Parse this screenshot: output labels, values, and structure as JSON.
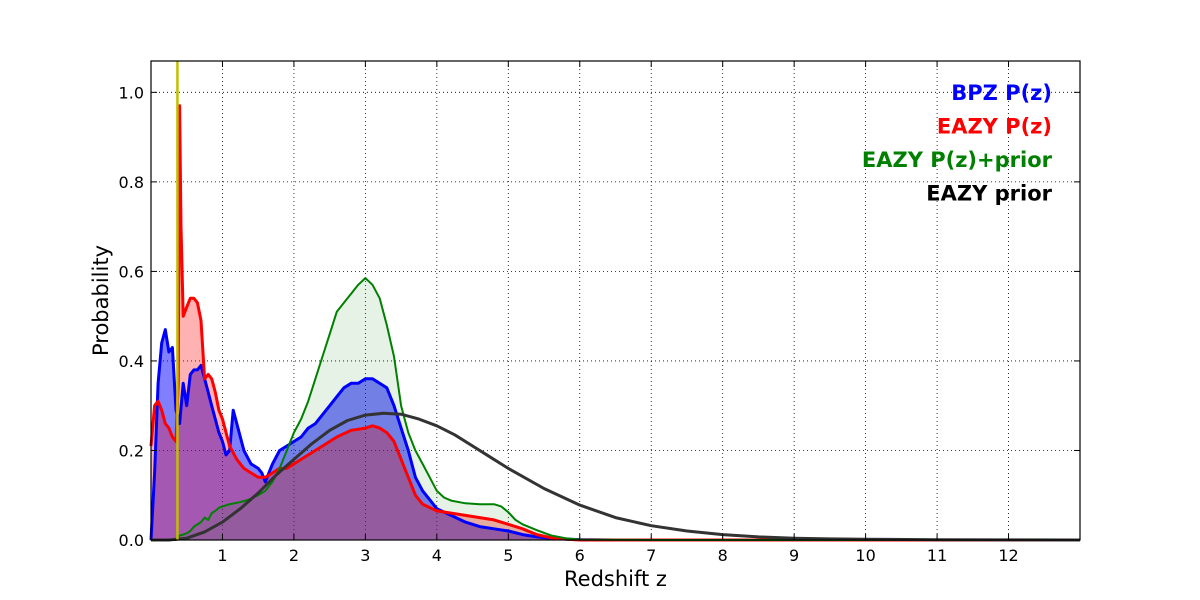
{
  "chart_data": {
    "type": "area",
    "xlabel": "Redshift z",
    "ylabel": "Probability",
    "xlim": [
      0,
      13
    ],
    "ylim": [
      0,
      1.07
    ],
    "xticks": [
      1,
      2,
      3,
      4,
      5,
      6,
      7,
      8,
      9,
      10,
      11,
      12
    ],
    "yticks": [
      0.0,
      0.2,
      0.4,
      0.6,
      0.8,
      1.0
    ],
    "ytick_labels": [
      "0.0",
      "0.2",
      "0.4",
      "0.6",
      "0.8",
      "1.0"
    ],
    "grid": true,
    "legend_position": "top-right",
    "reference_line": {
      "x": 0.37,
      "color": "#bfbf00"
    },
    "series": [
      {
        "name": "BPZ P(z)",
        "color": "#0000ff",
        "fill": "#0000ff",
        "fill_opacity": 0.5,
        "line_width": 3,
        "x": [
          0,
          0.05,
          0.1,
          0.15,
          0.2,
          0.25,
          0.3,
          0.35,
          0.4,
          0.45,
          0.5,
          0.55,
          0.6,
          0.65,
          0.7,
          0.75,
          0.8,
          0.85,
          0.9,
          0.95,
          1.0,
          1.05,
          1.1,
          1.15,
          1.2,
          1.3,
          1.4,
          1.5,
          1.55,
          1.6,
          1.7,
          1.8,
          1.9,
          2.0,
          2.1,
          2.2,
          2.3,
          2.4,
          2.5,
          2.6,
          2.7,
          2.8,
          2.9,
          3.0,
          3.1,
          3.2,
          3.3,
          3.4,
          3.5,
          3.6,
          3.7,
          3.8,
          3.9,
          4.0,
          4.2,
          4.4,
          4.6,
          4.8,
          5.0,
          5.2,
          5.4,
          5.6,
          5.8,
          6.0,
          6.5,
          7,
          8,
          9,
          10,
          11,
          12,
          13
        ],
        "y": [
          0.0,
          0.15,
          0.35,
          0.44,
          0.47,
          0.42,
          0.43,
          0.29,
          0.26,
          0.35,
          0.3,
          0.37,
          0.38,
          0.38,
          0.39,
          0.36,
          0.33,
          0.3,
          0.27,
          0.24,
          0.22,
          0.19,
          0.2,
          0.29,
          0.26,
          0.2,
          0.17,
          0.16,
          0.15,
          0.13,
          0.17,
          0.2,
          0.21,
          0.22,
          0.23,
          0.25,
          0.26,
          0.28,
          0.3,
          0.32,
          0.34,
          0.35,
          0.35,
          0.36,
          0.36,
          0.35,
          0.34,
          0.3,
          0.25,
          0.2,
          0.14,
          0.11,
          0.09,
          0.07,
          0.055,
          0.04,
          0.03,
          0.025,
          0.02,
          0.012,
          0.007,
          0.004,
          0.002,
          0.001,
          0.0,
          0.0,
          0.0,
          0.0,
          0.0,
          0.0,
          0.0,
          0.0
        ]
      },
      {
        "name": "EAZY P(z)",
        "color": "#ff0000",
        "fill": "#ff0000",
        "fill_opacity": 0.3,
        "line_width": 3,
        "x": [
          0,
          0.05,
          0.1,
          0.15,
          0.2,
          0.25,
          0.3,
          0.35,
          0.38,
          0.4,
          0.42,
          0.45,
          0.5,
          0.55,
          0.6,
          0.65,
          0.7,
          0.75,
          0.8,
          0.85,
          0.9,
          0.95,
          1.0,
          1.1,
          1.2,
          1.3,
          1.4,
          1.5,
          1.6,
          1.7,
          1.8,
          1.9,
          2.0,
          2.2,
          2.4,
          2.6,
          2.8,
          3.0,
          3.1,
          3.2,
          3.3,
          3.4,
          3.5,
          3.6,
          3.7,
          3.8,
          4.0,
          4.2,
          4.4,
          4.6,
          4.8,
          5.0,
          5.2,
          5.4,
          5.6,
          5.8,
          6.0,
          7,
          8,
          10,
          13
        ],
        "y": [
          0.21,
          0.3,
          0.31,
          0.29,
          0.26,
          0.25,
          0.23,
          0.22,
          0.35,
          0.97,
          0.7,
          0.5,
          0.52,
          0.54,
          0.54,
          0.53,
          0.49,
          0.36,
          0.37,
          0.36,
          0.33,
          0.29,
          0.27,
          0.21,
          0.18,
          0.16,
          0.15,
          0.14,
          0.14,
          0.15,
          0.16,
          0.16,
          0.17,
          0.19,
          0.21,
          0.23,
          0.245,
          0.25,
          0.255,
          0.25,
          0.24,
          0.22,
          0.18,
          0.14,
          0.1,
          0.08,
          0.065,
          0.06,
          0.055,
          0.05,
          0.045,
          0.035,
          0.025,
          0.012,
          0.005,
          0.002,
          0.0,
          0.0,
          0.0,
          0.0,
          0.0
        ]
      },
      {
        "name": "EAZY P(z)+prior",
        "color": "#008000",
        "fill": "#008000",
        "fill_opacity": 0.1,
        "line_width": 2,
        "x": [
          0,
          0.2,
          0.35,
          0.4,
          0.45,
          0.5,
          0.55,
          0.6,
          0.7,
          0.75,
          0.8,
          0.85,
          0.9,
          0.95,
          1.0,
          1.1,
          1.2,
          1.3,
          1.4,
          1.5,
          1.6,
          1.7,
          1.8,
          1.9,
          2.0,
          2.1,
          2.2,
          2.3,
          2.4,
          2.5,
          2.6,
          2.7,
          2.8,
          2.9,
          3.0,
          3.1,
          3.2,
          3.3,
          3.4,
          3.5,
          3.6,
          3.7,
          3.8,
          3.9,
          4.0,
          4.1,
          4.2,
          4.4,
          4.6,
          4.8,
          4.9,
          5.0,
          5.1,
          5.2,
          5.4,
          5.6,
          5.8,
          6.0,
          7,
          13
        ],
        "y": [
          0.0,
          0.0,
          0.0,
          0.01,
          0.012,
          0.015,
          0.02,
          0.03,
          0.04,
          0.05,
          0.045,
          0.06,
          0.065,
          0.072,
          0.075,
          0.08,
          0.083,
          0.087,
          0.092,
          0.1,
          0.11,
          0.13,
          0.16,
          0.2,
          0.24,
          0.27,
          0.31,
          0.36,
          0.41,
          0.46,
          0.51,
          0.53,
          0.55,
          0.57,
          0.585,
          0.57,
          0.54,
          0.48,
          0.41,
          0.3,
          0.24,
          0.2,
          0.17,
          0.14,
          0.11,
          0.095,
          0.088,
          0.082,
          0.08,
          0.08,
          0.075,
          0.062,
          0.045,
          0.035,
          0.022,
          0.01,
          0.004,
          0.001,
          0.0,
          0.0
        ]
      },
      {
        "name": "EAZY prior",
        "color": "#333333",
        "fill": "none",
        "fill_opacity": 0,
        "line_width": 3,
        "x": [
          0,
          0.25,
          0.5,
          0.75,
          1.0,
          1.25,
          1.5,
          1.75,
          2.0,
          2.25,
          2.5,
          2.75,
          3.0,
          3.25,
          3.5,
          3.75,
          4.0,
          4.25,
          4.5,
          4.75,
          5.0,
          5.5,
          6.0,
          6.5,
          7.0,
          7.5,
          8.0,
          8.5,
          9.0,
          9.5,
          10.0,
          11.0,
          12.0,
          13.0
        ],
        "y": [
          0.0,
          0.0,
          0.004,
          0.018,
          0.04,
          0.07,
          0.105,
          0.145,
          0.18,
          0.215,
          0.245,
          0.267,
          0.279,
          0.283,
          0.281,
          0.27,
          0.255,
          0.235,
          0.21,
          0.185,
          0.16,
          0.115,
          0.078,
          0.05,
          0.032,
          0.02,
          0.012,
          0.007,
          0.004,
          0.0025,
          0.0015,
          0.0006,
          0.0002,
          0.0
        ]
      }
    ],
    "legend": [
      {
        "label": "BPZ P(z)",
        "color": "#0000ff"
      },
      {
        "label": "EAZY P(z)",
        "color": "#ff0000"
      },
      {
        "label": "EAZY P(z)+prior",
        "color": "#008000"
      },
      {
        "label": "EAZY prior",
        "color": "#000000"
      }
    ]
  }
}
